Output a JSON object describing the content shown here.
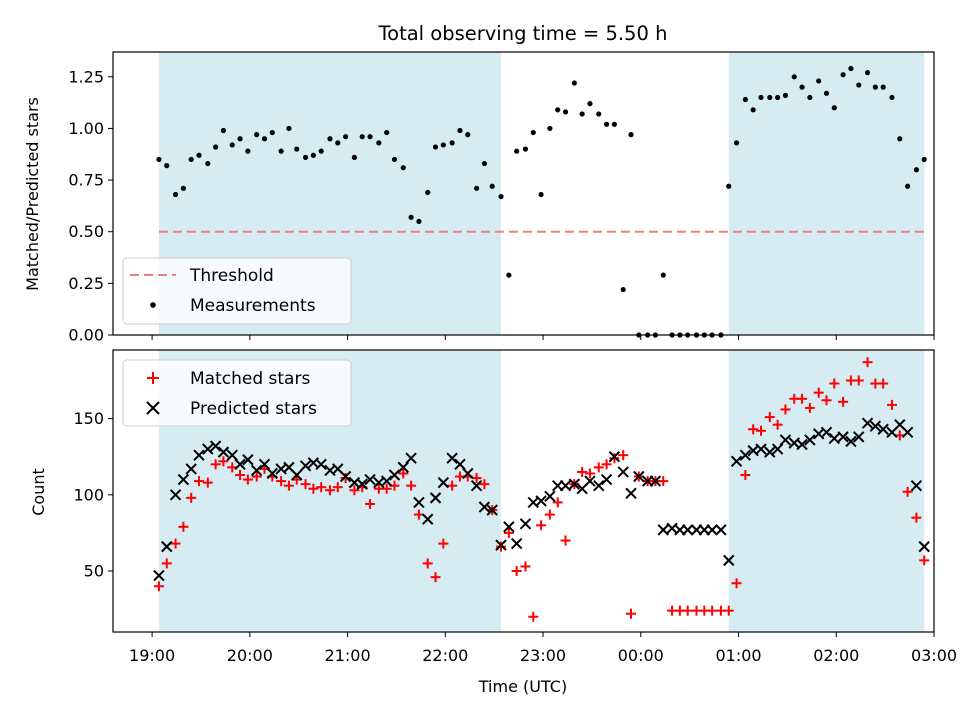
{
  "chart_data": [
    {
      "type": "scatter",
      "title": "Total observing time = 5.50 h",
      "xlabel": "",
      "ylabel": "Matched/Predicted stars",
      "xlim": [
        -0.4,
        8.0
      ],
      "ylim": [
        0,
        1.37
      ],
      "yticks": [
        0,
        0.25,
        0.5,
        0.75,
        1.0,
        1.25
      ],
      "ytick_labels": [
        "0.00",
        "0.25",
        "0.50",
        "0.75",
        "1.00",
        "1.25"
      ],
      "x_units": "hours after 19:00 UTC",
      "shaded_intervals": [
        [
          0.07,
          3.57
        ],
        [
          5.9,
          7.9
        ]
      ],
      "shade_color": "#add8e6",
      "threshold": {
        "name": "Threshold",
        "y": 0.5,
        "x_range": [
          0.07,
          7.9
        ],
        "color": "#f08080"
      },
      "legend": {
        "placement": "lower-left",
        "entries": [
          "Threshold",
          "Measurements"
        ]
      },
      "series": [
        {
          "name": "Measurements",
          "color": "#000000",
          "x": [
            0.07,
            0.15,
            0.24,
            0.32,
            0.4,
            0.48,
            0.57,
            0.65,
            0.73,
            0.82,
            0.9,
            0.98,
            1.07,
            1.15,
            1.23,
            1.32,
            1.4,
            1.48,
            1.57,
            1.65,
            1.73,
            1.82,
            1.9,
            1.98,
            2.07,
            2.15,
            2.23,
            2.32,
            2.4,
            2.48,
            2.57,
            2.65,
            2.73,
            2.82,
            2.9,
            2.98,
            3.07,
            3.15,
            3.23,
            3.32,
            3.4,
            3.48,
            3.57,
            3.65,
            3.73,
            3.82,
            3.9,
            3.98,
            4.07,
            4.15,
            4.23,
            4.32,
            4.4,
            4.48,
            4.57,
            4.65,
            4.73,
            4.82,
            4.9,
            4.98,
            5.07,
            5.15,
            5.23,
            5.32,
            5.4,
            5.48,
            5.57,
            5.65,
            5.73,
            5.82,
            5.9,
            5.98,
            6.07,
            6.15,
            6.23,
            6.32,
            6.4,
            6.48,
            6.57,
            6.65,
            6.73,
            6.82,
            6.9,
            6.98,
            7.07,
            7.15,
            7.23,
            7.32,
            7.4,
            7.48,
            7.57,
            7.65,
            7.73,
            7.82,
            7.9
          ],
          "y": [
            0.85,
            0.82,
            0.68,
            0.71,
            0.85,
            0.87,
            0.83,
            0.91,
            0.99,
            0.92,
            0.95,
            0.89,
            0.97,
            0.95,
            0.98,
            0.89,
            1.0,
            0.9,
            0.86,
            0.87,
            0.89,
            0.95,
            0.93,
            0.96,
            0.86,
            0.96,
            0.96,
            0.93,
            0.98,
            0.85,
            0.81,
            0.57,
            0.55,
            0.69,
            0.91,
            0.92,
            0.93,
            0.99,
            0.97,
            0.71,
            0.83,
            0.72,
            0.67,
            0.29,
            0.89,
            0.9,
            0.98,
            0.68,
            1.0,
            1.09,
            1.08,
            1.22,
            1.07,
            1.12,
            1.07,
            1.02,
            1.02,
            0.22,
            0.97,
            0.0,
            0.0,
            0.0,
            0.29,
            0.0,
            0.0,
            0.0,
            0.0,
            0.0,
            0.0,
            0.0,
            0.72,
            0.93,
            1.14,
            1.09,
            1.15,
            1.15,
            1.15,
            1.16,
            1.25,
            1.2,
            1.15,
            1.23,
            1.17,
            1.1,
            1.26,
            1.29,
            1.21,
            1.27,
            1.2,
            1.2,
            1.15,
            0.95,
            0.72,
            0.8,
            0.85
          ]
        }
      ]
    },
    {
      "type": "scatter",
      "title": "",
      "xlabel": "Time (UTC)",
      "ylabel": "Count",
      "xlim": [
        -0.4,
        8.0
      ],
      "ylim": [
        10,
        195
      ],
      "yticks": [
        50,
        100,
        150
      ],
      "ytick_labels": [
        "50",
        "100",
        "150"
      ],
      "x_units": "hours after 19:00 UTC",
      "xticks": [
        0,
        1,
        2,
        3,
        4,
        5,
        6,
        7,
        8
      ],
      "xtick_labels": [
        "19:00",
        "20:00",
        "21:00",
        "22:00",
        "23:00",
        "00:00",
        "01:00",
        "02:00",
        "03:00"
      ],
      "shaded_intervals": [
        [
          0.07,
          3.57
        ],
        [
          5.9,
          7.9
        ]
      ],
      "shade_color": "#add8e6",
      "legend": {
        "placement": "upper-left",
        "entries": [
          "Matched stars",
          "Predicted stars"
        ]
      },
      "series": [
        {
          "name": "Matched stars",
          "marker": "plus",
          "color": "#ff0000",
          "x": [
            0.07,
            0.15,
            0.24,
            0.32,
            0.4,
            0.48,
            0.57,
            0.65,
            0.73,
            0.82,
            0.9,
            0.98,
            1.07,
            1.15,
            1.23,
            1.32,
            1.4,
            1.48,
            1.57,
            1.65,
            1.73,
            1.82,
            1.9,
            1.98,
            2.07,
            2.15,
            2.23,
            2.32,
            2.4,
            2.48,
            2.57,
            2.65,
            2.73,
            2.82,
            2.9,
            2.98,
            3.07,
            3.15,
            3.23,
            3.32,
            3.4,
            3.48,
            3.57,
            3.65,
            3.73,
            3.82,
            3.9,
            3.98,
            4.07,
            4.15,
            4.23,
            4.32,
            4.4,
            4.48,
            4.57,
            4.65,
            4.73,
            4.82,
            4.9,
            4.98,
            5.07,
            5.15,
            5.23,
            5.32,
            5.4,
            5.48,
            5.57,
            5.65,
            5.73,
            5.82,
            5.9,
            5.98,
            6.07,
            6.15,
            6.23,
            6.32,
            6.4,
            6.48,
            6.57,
            6.65,
            6.73,
            6.82,
            6.9,
            6.98,
            7.07,
            7.15,
            7.23,
            7.32,
            7.4,
            7.48,
            7.57,
            7.65,
            7.73,
            7.82,
            7.9
          ],
          "y": [
            40,
            55,
            68,
            79,
            98,
            109,
            108,
            120,
            122,
            118,
            113,
            110,
            112,
            117,
            112,
            109,
            106,
            110,
            107,
            104,
            105,
            103,
            105,
            111,
            103,
            105,
            94,
            104,
            104,
            106,
            114,
            106,
            87,
            55,
            46,
            68,
            106,
            112,
            112,
            111,
            107,
            90,
            66,
            75,
            50,
            53,
            20,
            80,
            87,
            95,
            70,
            107,
            115,
            114,
            118,
            120,
            124,
            126,
            22,
            112,
            109,
            109,
            109,
            24,
            24,
            24,
            24,
            24,
            24,
            24,
            24,
            42,
            113,
            143,
            142,
            151,
            146,
            156,
            163,
            163,
            157,
            167,
            162,
            173,
            161,
            175,
            175,
            187,
            173,
            173,
            159,
            139,
            102,
            85,
            57
          ]
        },
        {
          "name": "Predicted stars",
          "marker": "x",
          "color": "#000000",
          "x": [
            0.07,
            0.15,
            0.24,
            0.32,
            0.4,
            0.48,
            0.57,
            0.65,
            0.73,
            0.82,
            0.9,
            0.98,
            1.07,
            1.15,
            1.23,
            1.32,
            1.4,
            1.48,
            1.57,
            1.65,
            1.73,
            1.82,
            1.9,
            1.98,
            2.07,
            2.15,
            2.23,
            2.32,
            2.4,
            2.48,
            2.57,
            2.65,
            2.73,
            2.82,
            2.9,
            2.98,
            3.07,
            3.15,
            3.23,
            3.32,
            3.4,
            3.48,
            3.57,
            3.65,
            3.73,
            3.82,
            3.9,
            3.98,
            4.07,
            4.15,
            4.23,
            4.32,
            4.4,
            4.48,
            4.57,
            4.65,
            4.73,
            4.82,
            4.9,
            4.98,
            5.07,
            5.15,
            5.23,
            5.32,
            5.4,
            5.48,
            5.57,
            5.65,
            5.73,
            5.82,
            5.9,
            5.98,
            6.07,
            6.15,
            6.23,
            6.32,
            6.4,
            6.48,
            6.57,
            6.65,
            6.73,
            6.82,
            6.9,
            6.98,
            7.07,
            7.15,
            7.23,
            7.32,
            7.4,
            7.48,
            7.57,
            7.65,
            7.73,
            7.82,
            7.9
          ],
          "y": [
            47,
            66,
            100,
            110,
            117,
            126,
            130,
            132,
            128,
            126,
            120,
            123,
            116,
            120,
            114,
            117,
            118,
            113,
            119,
            121,
            120,
            116,
            117,
            112,
            108,
            107,
            110,
            108,
            109,
            113,
            118,
            124,
            95,
            84,
            98,
            108,
            124,
            120,
            114,
            106,
            92,
            90,
            67,
            79,
            68,
            81,
            95,
            96,
            99,
            106,
            106,
            107,
            104,
            109,
            106,
            110,
            125,
            115,
            101,
            112,
            109,
            109,
            77,
            78,
            77,
            77,
            77,
            77,
            77,
            77,
            57,
            122,
            126,
            129,
            130,
            128,
            130,
            136,
            134,
            133,
            136,
            140,
            141,
            137,
            138,
            135,
            138,
            147,
            145,
            143,
            141,
            146,
            141,
            106,
            66
          ]
        }
      ]
    }
  ]
}
